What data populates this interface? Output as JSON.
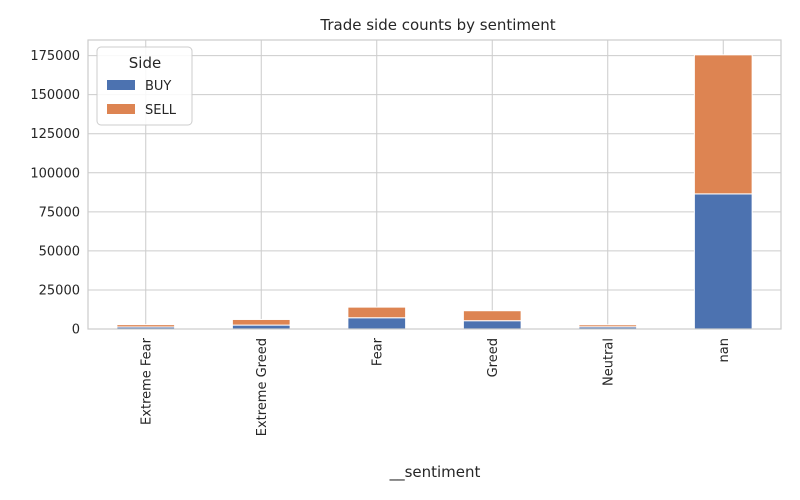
{
  "chart_data": {
    "type": "bar",
    "stacked": true,
    "title": "Trade side counts by sentiment",
    "xlabel": "__sentiment",
    "ylabel": "",
    "categories": [
      "Extreme Fear",
      "Extreme Greed",
      "Fear",
      "Greed",
      "Neutral",
      "nan"
    ],
    "series": [
      {
        "name": "BUY",
        "values": [
          1300,
          2500,
          7200,
          5300,
          1400,
          86500
        ],
        "color": "#4c72b0"
      },
      {
        "name": "SELL",
        "values": [
          1500,
          3600,
          6800,
          6400,
          1300,
          89000
        ],
        "color": "#dd8452"
      }
    ],
    "ylim": [
      0,
      185000
    ],
    "yticks": [
      0,
      25000,
      50000,
      75000,
      100000,
      125000,
      150000,
      175000
    ],
    "grid": true,
    "legend": {
      "title": "Side",
      "position": "top-left"
    }
  }
}
